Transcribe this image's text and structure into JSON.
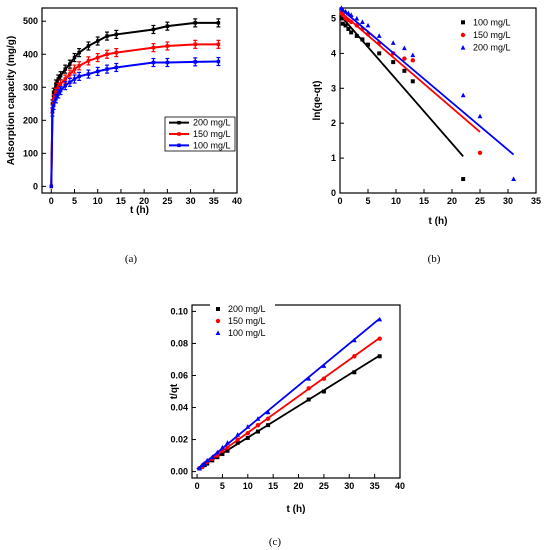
{
  "chart_data": [
    {
      "type": "line",
      "panel_label": "(a)",
      "xlabel": "t (h)",
      "ylabel": "Adsorption capacity (mg/g)",
      "xlim": [
        -2,
        40
      ],
      "ylim": [
        -20,
        540
      ],
      "xticks": [
        "0",
        "5",
        "10",
        "15",
        "20",
        "25",
        "30",
        "35",
        "40"
      ],
      "yticks": [
        "0",
        "100",
        "200",
        "300",
        "400",
        "500"
      ],
      "legend_position": "right-center",
      "error_bars": true,
      "series": [
        {
          "name": "200 mg/L",
          "color": "#000000",
          "marker": "square",
          "x": [
            0,
            0.25,
            0.5,
            1,
            1.5,
            2,
            3,
            4,
            5,
            6,
            8,
            10,
            12,
            14,
            22,
            25,
            31,
            36
          ],
          "y": [
            0,
            250,
            285,
            310,
            325,
            335,
            355,
            370,
            390,
            405,
            425,
            440,
            455,
            460,
            475,
            485,
            495,
            495
          ]
        },
        {
          "name": "150 mg/L",
          "color": "#ff0000",
          "marker": "square",
          "x": [
            0,
            0.25,
            0.5,
            1,
            1.5,
            2,
            3,
            4,
            5,
            6,
            8,
            10,
            12,
            14,
            22,
            25,
            31,
            36
          ],
          "y": [
            0,
            235,
            265,
            285,
            300,
            310,
            325,
            340,
            355,
            365,
            380,
            390,
            400,
            405,
            420,
            425,
            430,
            430
          ]
        },
        {
          "name": "100 mg/L",
          "color": "#0000ff",
          "marker": "square",
          "x": [
            0,
            0.25,
            0.5,
            1,
            1.5,
            2,
            3,
            4,
            5,
            6,
            8,
            10,
            12,
            14,
            22,
            25,
            31,
            36
          ],
          "y": [
            0,
            225,
            245,
            265,
            280,
            290,
            305,
            315,
            325,
            333,
            340,
            348,
            355,
            360,
            375,
            375,
            377,
            378
          ]
        }
      ]
    },
    {
      "type": "scatter",
      "panel_label": "(b)",
      "xlabel": "t (h)",
      "ylabel": "ln(qe-qt)",
      "xlim": [
        0,
        35
      ],
      "ylim": [
        0,
        5.3
      ],
      "xticks": [
        "0",
        "5",
        "10",
        "15",
        "20",
        "25",
        "30",
        "35"
      ],
      "yticks": [
        "0",
        "1",
        "2",
        "3",
        "4",
        "5"
      ],
      "legend_position": "top-right",
      "series": [
        {
          "name": "100 mg/L",
          "color": "#000000",
          "marker": "square",
          "x": [
            0.25,
            0.5,
            1,
            1.5,
            2,
            3,
            4,
            5,
            7,
            9.5,
            11.5,
            13,
            22
          ],
          "y": [
            5.0,
            4.85,
            4.8,
            4.7,
            4.6,
            4.5,
            4.4,
            4.25,
            4.0,
            3.75,
            3.5,
            3.2,
            0.4
          ],
          "fit": {
            "x": [
              0,
              22
            ],
            "y": [
              5.1,
              1.05
            ]
          }
        },
        {
          "name": "150 mg/L",
          "color": "#ff0000",
          "marker": "circle",
          "x": [
            0.25,
            0.5,
            1,
            1.5,
            2,
            3,
            4,
            5,
            7,
            9.5,
            11.5,
            13,
            25
          ],
          "y": [
            5.15,
            5.1,
            5.0,
            4.95,
            4.9,
            4.8,
            4.7,
            4.55,
            4.3,
            4.0,
            3.85,
            3.8,
            1.15
          ],
          "fit": {
            "x": [
              0,
              25
            ],
            "y": [
              5.2,
              1.75
            ]
          }
        },
        {
          "name": "200 mg/L",
          "color": "#0000ff",
          "marker": "triangle",
          "x": [
            0.25,
            0.5,
            1,
            1.5,
            2,
            3,
            4,
            5,
            7,
            9.5,
            11.5,
            13,
            22,
            25,
            31
          ],
          "y": [
            5.3,
            5.25,
            5.2,
            5.15,
            5.1,
            5.0,
            4.9,
            4.8,
            4.5,
            4.3,
            4.15,
            3.95,
            2.8,
            2.2,
            0.4
          ],
          "fit": {
            "x": [
              0,
              31
            ],
            "y": [
              5.3,
              1.1
            ]
          }
        }
      ]
    },
    {
      "type": "scatter",
      "panel_label": "(c)",
      "xlabel": "t (h)",
      "ylabel": "t/qt",
      "xlim": [
        -1,
        40
      ],
      "ylim": [
        -0.004,
        0.104
      ],
      "xticks": [
        "0",
        "5",
        "10",
        "15",
        "20",
        "25",
        "30",
        "35",
        "40"
      ],
      "yticks": [
        "0.00",
        "0.02",
        "0.04",
        "0.06",
        "0.08",
        "0.10"
      ],
      "legend_position": "top-left",
      "series": [
        {
          "name": "200 mg/L",
          "color": "#000000",
          "marker": "square",
          "x": [
            0.5,
            1,
            1.5,
            2,
            3,
            4,
            5,
            6,
            8,
            10,
            12,
            14,
            22,
            25,
            31,
            36
          ],
          "y": [
            0.002,
            0.003,
            0.004,
            0.005,
            0.007,
            0.009,
            0.011,
            0.013,
            0.018,
            0.021,
            0.025,
            0.029,
            0.045,
            0.05,
            0.062,
            0.072
          ],
          "fit": {
            "x": [
              0,
              36
            ],
            "y": [
              0.0015,
              0.0725
            ]
          }
        },
        {
          "name": "150 mg/L",
          "color": "#ff0000",
          "marker": "circle",
          "x": [
            0.5,
            1,
            1.5,
            2,
            3,
            4,
            5,
            6,
            8,
            10,
            12,
            14,
            22,
            25,
            31,
            36
          ],
          "y": [
            0.002,
            0.003,
            0.005,
            0.006,
            0.008,
            0.01,
            0.013,
            0.015,
            0.02,
            0.024,
            0.029,
            0.033,
            0.052,
            0.058,
            0.072,
            0.083
          ],
          "fit": {
            "x": [
              0,
              36
            ],
            "y": [
              0.0015,
              0.0835
            ]
          }
        },
        {
          "name": "100 mg/L",
          "color": "#0000ff",
          "marker": "triangle",
          "x": [
            0.5,
            1,
            1.5,
            2,
            3,
            4,
            5,
            6,
            8,
            10,
            12,
            14,
            22,
            25,
            31,
            36
          ],
          "y": [
            0.002,
            0.004,
            0.005,
            0.007,
            0.009,
            0.012,
            0.015,
            0.018,
            0.023,
            0.028,
            0.033,
            0.037,
            0.058,
            0.066,
            0.082,
            0.095
          ],
          "fit": {
            "x": [
              0,
              36
            ],
            "y": [
              0.0015,
              0.0955
            ]
          }
        }
      ]
    }
  ]
}
